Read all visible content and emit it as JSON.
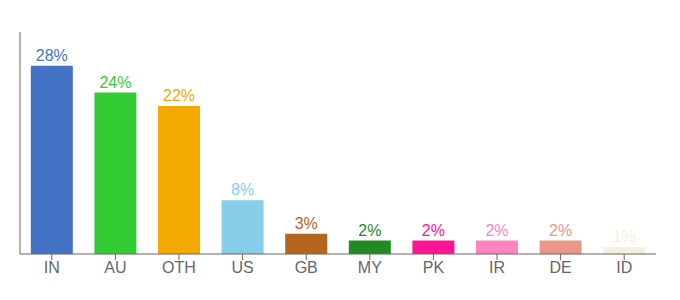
{
  "chart_data": {
    "type": "bar",
    "categories": [
      "IN",
      "AU",
      "OTH",
      "US",
      "GB",
      "MY",
      "PK",
      "IR",
      "DE",
      "ID"
    ],
    "values": [
      28,
      24,
      22,
      8,
      3,
      2,
      2,
      2,
      2,
      1
    ],
    "value_labels": [
      "28%",
      "24%",
      "22%",
      "8%",
      "3%",
      "2%",
      "2%",
      "2%",
      "2%",
      "1%"
    ],
    "colors": [
      "#4472c4",
      "#33cc33",
      "#f4a900",
      "#87ceeb",
      "#b5651d",
      "#228b22",
      "#ff1493",
      "#ff85c2",
      "#e8978a",
      "#f5f0dc"
    ],
    "ylim": [
      0,
      33
    ],
    "data_labels": true,
    "tick_labels": "x",
    "grid": false
  }
}
